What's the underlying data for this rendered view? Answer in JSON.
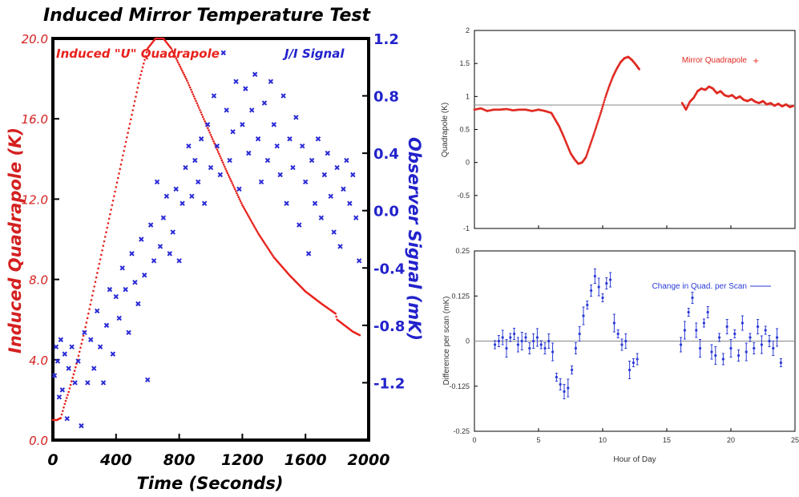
{
  "chart_data": [
    {
      "type": "scatter",
      "title": "Induced Mirror Temperature Test",
      "xlabel": "Time (Seconds)",
      "ylabel_left": "Induced Quadrapole (K)",
      "ylabel_right": "Observer Signal (mK)",
      "xlim": [
        0,
        2000
      ],
      "ylim_left": [
        0,
        20
      ],
      "ylim_right": [
        -1.6,
        1.2
      ],
      "x_ticks": [
        "0",
        "400",
        "800",
        "1200",
        "1600",
        "2000"
      ],
      "y_left_ticks": [
        "0.0",
        "4.0",
        "8.0",
        "12.0",
        "16.0",
        "20.0"
      ],
      "y_right_ticks": [
        "-1.2",
        "-0.8",
        "-0.4",
        "0.0",
        "0.4",
        "0.8",
        "1.2"
      ],
      "legend": [
        "Induced \"U\" Quadrapole",
        "J/I Signal"
      ],
      "colors": {
        "quad": "#e8221c",
        "signal": "#2a2ad6",
        "text_left": "#d42020",
        "text_right": "#2222cc"
      },
      "series": [
        {
          "name": "Induced \"U\" Quadrapole",
          "axis": "left",
          "x": [
            0,
            25,
            50,
            75,
            100,
            150,
            200,
            250,
            300,
            350,
            400,
            450,
            500,
            550,
            600,
            650,
            700,
            750,
            800,
            850,
            900,
            950,
            1000,
            1100,
            1200,
            1300,
            1400,
            1500,
            1600,
            1700,
            1790,
            1800,
            1850,
            1900,
            1950
          ],
          "y": [
            1.0,
            1.0,
            1.1,
            1.8,
            2.4,
            3.8,
            5.4,
            7.2,
            9.0,
            10.8,
            12.6,
            14.4,
            16.2,
            18.0,
            19.5,
            20.0,
            20.0,
            19.5,
            18.7,
            17.9,
            17.0,
            16.1,
            15.2,
            13.4,
            11.7,
            10.3,
            9.1,
            8.2,
            7.4,
            6.8,
            6.3,
            6.0,
            5.7,
            5.4,
            5.2
          ]
        },
        {
          "name": "J/I Signal",
          "axis": "right",
          "x": [
            10,
            20,
            30,
            40,
            50,
            60,
            75,
            90,
            100,
            120,
            140,
            160,
            180,
            200,
            220,
            240,
            260,
            280,
            300,
            320,
            340,
            360,
            380,
            400,
            420,
            440,
            460,
            480,
            500,
            520,
            540,
            560,
            580,
            600,
            620,
            640,
            660,
            680,
            700,
            720,
            740,
            760,
            780,
            800,
            820,
            840,
            860,
            880,
            900,
            920,
            940,
            960,
            980,
            1000,
            1020,
            1040,
            1060,
            1080,
            1100,
            1120,
            1140,
            1160,
            1180,
            1200,
            1220,
            1240,
            1260,
            1280,
            1300,
            1320,
            1340,
            1360,
            1380,
            1400,
            1420,
            1440,
            1460,
            1480,
            1500,
            1520,
            1540,
            1560,
            1580,
            1600,
            1620,
            1640,
            1660,
            1680,
            1700,
            1720,
            1740,
            1760,
            1780,
            1800,
            1820,
            1840,
            1860,
            1880,
            1900,
            1920,
            1940
          ],
          "y": [
            -1.15,
            -0.95,
            -1.05,
            -1.3,
            -0.9,
            -1.25,
            -1.0,
            -1.45,
            -1.1,
            -0.95,
            -1.2,
            -1.05,
            -1.5,
            -0.85,
            -1.2,
            -0.9,
            -1.1,
            -0.7,
            -0.95,
            -1.2,
            -0.8,
            -0.55,
            -1.0,
            -0.6,
            -0.75,
            -0.4,
            -0.55,
            -0.85,
            -0.3,
            -0.5,
            -0.65,
            -0.2,
            -0.45,
            -1.18,
            -0.1,
            -0.35,
            0.2,
            -0.25,
            -0.05,
            0.1,
            -0.3,
            -0.15,
            0.15,
            -0.35,
            0.05,
            0.3,
            0.45,
            0.1,
            0.35,
            0.2,
            0.5,
            0.05,
            0.6,
            0.3,
            0.8,
            0.45,
            0.25,
            1.1,
            0.7,
            0.35,
            0.55,
            0.9,
            0.15,
            0.6,
            0.85,
            0.4,
            0.7,
            0.95,
            0.5,
            0.2,
            0.75,
            0.35,
            0.9,
            0.6,
            0.45,
            0.25,
            0.8,
            0.05,
            0.5,
            0.3,
            0.65,
            -0.1,
            0.45,
            0.2,
            -0.3,
            0.35,
            0.05,
            0.5,
            -0.05,
            0.25,
            0.4,
            0.1,
            -0.15,
            0.3,
            -0.25,
            0.15,
            0.35,
            0.05,
            0.25,
            -0.05,
            -0.35
          ]
        }
      ]
    },
    {
      "type": "line",
      "xlim": [
        0,
        25
      ],
      "ylim": [
        -1,
        2
      ],
      "x_ticks": [
        "0",
        "5",
        "10",
        "15",
        "20",
        "25"
      ],
      "y_ticks": [
        "-1",
        "-0.5",
        "0",
        "0.5",
        "1",
        "1.5",
        "2"
      ],
      "ylabel": "Quadrapole (K)",
      "legend": [
        "Mirror Quadrapole"
      ],
      "reference_line": 0.87,
      "color": "#e02a22",
      "series": [
        {
          "name": "Mirror Quadrapole",
          "x": [
            0,
            0.5,
            1,
            1.5,
            2,
            2.5,
            3,
            3.5,
            4,
            4.5,
            5,
            5.5,
            6,
            6.3,
            6.6,
            6.9,
            7.2,
            7.5,
            7.8,
            8.1,
            8.4,
            8.7,
            9.0,
            9.3,
            9.6,
            9.9,
            10.2,
            10.5,
            10.8,
            11.1,
            11.4,
            11.7,
            12.0,
            12.3,
            12.6,
            12.9,
            16.2,
            16.5,
            16.8,
            17.1,
            17.4,
            17.7,
            18.0,
            18.3,
            18.6,
            18.9,
            19.2,
            19.5,
            19.8,
            20.1,
            20.4,
            20.7,
            21.0,
            21.3,
            21.6,
            21.9,
            22.2,
            22.5,
            22.8,
            23.1,
            23.4,
            23.7,
            24.0,
            24.3,
            24.6,
            24.9
          ],
          "y": [
            0.8,
            0.82,
            0.78,
            0.8,
            0.8,
            0.81,
            0.79,
            0.8,
            0.8,
            0.78,
            0.8,
            0.78,
            0.75,
            0.65,
            0.55,
            0.42,
            0.28,
            0.14,
            0.05,
            -0.02,
            0.0,
            0.08,
            0.25,
            0.42,
            0.6,
            0.78,
            0.98,
            1.15,
            1.3,
            1.42,
            1.52,
            1.58,
            1.6,
            1.55,
            1.48,
            1.4,
            0.9,
            0.8,
            0.92,
            0.98,
            1.08,
            1.12,
            1.1,
            1.15,
            1.12,
            1.05,
            1.08,
            1.02,
            1.0,
            1.02,
            0.97,
            1.0,
            0.95,
            0.93,
            0.96,
            0.92,
            0.9,
            0.93,
            0.88,
            0.9,
            0.86,
            0.89,
            0.85,
            0.88,
            0.84,
            0.86
          ]
        }
      ]
    },
    {
      "type": "scatter",
      "xlim": [
        0,
        25
      ],
      "ylim": [
        -0.25,
        0.25
      ],
      "x_ticks": [
        "0",
        "5",
        "10",
        "15",
        "20",
        "25"
      ],
      "y_ticks": [
        "-0.25",
        "-0.125",
        "0",
        "0.125",
        "0.25"
      ],
      "xlabel": "Hour of Day",
      "ylabel": "Difference per scan (mK)",
      "legend": [
        "Change in Quad. per Scan"
      ],
      "reference_line": 0,
      "color": "#2a3ad6",
      "series": [
        {
          "name": "Change in Quad. per Scan",
          "x": [
            1.6,
            1.9,
            2.2,
            2.5,
            2.8,
            3.1,
            3.4,
            3.7,
            4.0,
            4.3,
            4.6,
            4.9,
            5.2,
            5.5,
            5.8,
            6.1,
            6.4,
            6.7,
            7.0,
            7.3,
            7.6,
            7.9,
            8.2,
            8.5,
            8.8,
            9.1,
            9.4,
            9.7,
            10.0,
            10.3,
            10.6,
            10.9,
            11.2,
            11.5,
            11.8,
            12.1,
            12.4,
            12.7,
            16.1,
            16.4,
            16.7,
            17.0,
            17.3,
            17.6,
            17.9,
            18.2,
            18.5,
            18.8,
            19.1,
            19.4,
            19.7,
            20.0,
            20.3,
            20.6,
            20.9,
            21.2,
            21.5,
            21.8,
            22.1,
            22.4,
            22.7,
            23.0,
            23.3,
            23.6,
            23.9
          ],
          "y": [
            -0.01,
            0.0,
            0.01,
            -0.02,
            0.01,
            0.02,
            -0.01,
            0.0,
            0.01,
            -0.02,
            0.0,
            0.01,
            -0.01,
            -0.02,
            0.0,
            -0.03,
            -0.1,
            -0.12,
            -0.14,
            -0.13,
            -0.08,
            -0.02,
            0.02,
            0.07,
            0.1,
            0.14,
            0.18,
            0.15,
            0.12,
            0.16,
            0.17,
            0.05,
            0.02,
            -0.01,
            0.0,
            -0.08,
            -0.06,
            -0.05,
            -0.01,
            0.03,
            0.08,
            0.12,
            0.03,
            -0.02,
            0.05,
            0.08,
            -0.03,
            -0.04,
            0.01,
            -0.05,
            0.04,
            -0.02,
            0.02,
            -0.04,
            0.05,
            -0.03,
            0.01,
            -0.02,
            0.04,
            -0.01,
            0.03,
            0.0,
            -0.02,
            0.01,
            -0.06
          ]
        }
      ]
    }
  ]
}
